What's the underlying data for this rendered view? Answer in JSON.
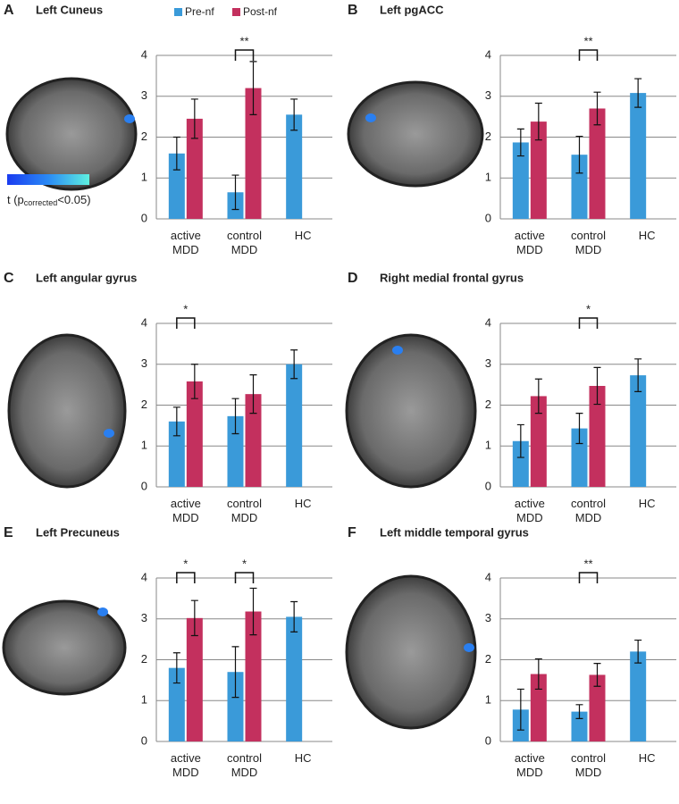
{
  "chart_data": [
    {
      "type": "bar",
      "panel": "A",
      "title": "Left Cuneus",
      "legend": true,
      "colorbar_label": {
        "prefix": "t (p",
        "subscript": "corrected",
        "suffix": "<0.05)"
      },
      "categories": [
        "active\nMDD",
        "control\nMDD",
        "HC"
      ],
      "series": [
        {
          "name": "Pre-nf",
          "color": "#3a9ad9",
          "values": [
            1.6,
            0.65,
            2.55
          ],
          "errors": [
            0.4,
            0.42,
            0.38
          ]
        },
        {
          "name": "Post-nf",
          "color": "#c3305e",
          "values": [
            2.45,
            3.2,
            null
          ],
          "errors": [
            0.48,
            0.65,
            null
          ]
        }
      ],
      "ylim": [
        0,
        4
      ],
      "yticks": [
        0,
        1,
        2,
        3,
        4
      ],
      "grid": true,
      "significance": [
        {
          "category": 1,
          "label": "**"
        }
      ]
    },
    {
      "type": "bar",
      "panel": "B",
      "title": "Left pgACC",
      "categories": [
        "active\nMDD",
        "control\nMDD",
        "HC"
      ],
      "series": [
        {
          "color": "#3a9ad9",
          "values": [
            1.87,
            1.57,
            3.08
          ],
          "errors": [
            0.33,
            0.45,
            0.35
          ]
        },
        {
          "color": "#c3305e",
          "values": [
            2.38,
            2.7,
            null
          ],
          "errors": [
            0.45,
            0.4,
            null
          ]
        }
      ],
      "ylim": [
        0,
        4
      ],
      "yticks": [
        0,
        1,
        2,
        3,
        4
      ],
      "grid": true,
      "significance": [
        {
          "category": 1,
          "label": "**"
        }
      ]
    },
    {
      "type": "bar",
      "panel": "C",
      "title": "Left angular gyrus",
      "categories": [
        "active\nMDD",
        "control\nMDD",
        "HC"
      ],
      "series": [
        {
          "color": "#3a9ad9",
          "values": [
            1.6,
            1.73,
            3.0
          ],
          "errors": [
            0.35,
            0.43,
            0.35
          ]
        },
        {
          "color": "#c3305e",
          "values": [
            2.58,
            2.27,
            null
          ],
          "errors": [
            0.42,
            0.47,
            null
          ]
        }
      ],
      "ylim": [
        0,
        4
      ],
      "yticks": [
        0,
        1,
        2,
        3,
        4
      ],
      "grid": true,
      "significance": [
        {
          "category": 0,
          "label": "*"
        }
      ]
    },
    {
      "type": "bar",
      "panel": "D",
      "title": "Right medial frontal gyrus",
      "categories": [
        "active\nMDD",
        "control\nMDD",
        "HC"
      ],
      "series": [
        {
          "color": "#3a9ad9",
          "values": [
            1.12,
            1.43,
            2.73
          ],
          "errors": [
            0.4,
            0.37,
            0.4
          ]
        },
        {
          "color": "#c3305e",
          "values": [
            2.22,
            2.47,
            null
          ],
          "errors": [
            0.42,
            0.45,
            null
          ]
        }
      ],
      "ylim": [
        0,
        4
      ],
      "yticks": [
        0,
        1,
        2,
        3,
        4
      ],
      "grid": true,
      "significance": [
        {
          "category": 1,
          "label": "*"
        }
      ]
    },
    {
      "type": "bar",
      "panel": "E",
      "title": "Left Precuneus",
      "categories": [
        "active\nMDD",
        "control\nMDD",
        "HC"
      ],
      "series": [
        {
          "color": "#3a9ad9",
          "values": [
            1.8,
            1.7,
            3.05
          ],
          "errors": [
            0.37,
            0.62,
            0.37
          ]
        },
        {
          "color": "#c3305e",
          "values": [
            3.02,
            3.18,
            null
          ],
          "errors": [
            0.43,
            0.57,
            null
          ]
        }
      ],
      "ylim": [
        0,
        4
      ],
      "yticks": [
        0,
        1,
        2,
        3,
        4
      ],
      "grid": true,
      "significance": [
        {
          "category": 0,
          "label": "*"
        },
        {
          "category": 1,
          "label": "*"
        }
      ]
    },
    {
      "type": "bar",
      "panel": "F",
      "title": "Left middle temporal gyrus",
      "categories": [
        "active\nMDD",
        "control\nMDD",
        "HC"
      ],
      "series": [
        {
          "color": "#3a9ad9",
          "values": [
            0.78,
            0.73,
            2.2
          ],
          "errors": [
            0.5,
            0.17,
            0.28
          ]
        },
        {
          "color": "#c3305e",
          "values": [
            1.65,
            1.63,
            null
          ],
          "errors": [
            0.37,
            0.28,
            null
          ]
        }
      ],
      "ylim": [
        0,
        4
      ],
      "yticks": [
        0,
        1,
        2,
        3,
        4
      ],
      "grid": true,
      "significance": [
        {
          "category": 1,
          "label": "**"
        }
      ]
    }
  ]
}
